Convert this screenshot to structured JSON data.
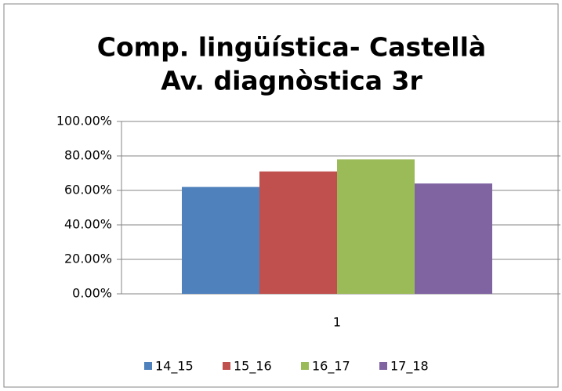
{
  "chart_data": {
    "type": "bar",
    "title": [
      "Comp. lingüística- Castellà",
      "Av. diagnòstica 3r"
    ],
    "categories": [
      "1"
    ],
    "series": [
      {
        "name": "14_15",
        "color": "#4f81bd",
        "values": [
          62
        ]
      },
      {
        "name": "15_16",
        "color": "#c0504d",
        "values": [
          71
        ]
      },
      {
        "name": "16_17",
        "color": "#9bbb59",
        "values": [
          78
        ]
      },
      {
        "name": "17_18",
        "color": "#8064a2",
        "values": [
          64
        ]
      }
    ],
    "ylim": [
      0,
      100
    ],
    "yticks": [
      {
        "value": 0,
        "label": "0.00%"
      },
      {
        "value": 20,
        "label": "20.00%"
      },
      {
        "value": 40,
        "label": "40.00%"
      },
      {
        "value": 60,
        "label": "60.00%"
      },
      {
        "value": 80,
        "label": "80.00%"
      },
      {
        "value": 100,
        "label": "100.00%"
      }
    ],
    "grid": true,
    "legend": "bottom"
  }
}
